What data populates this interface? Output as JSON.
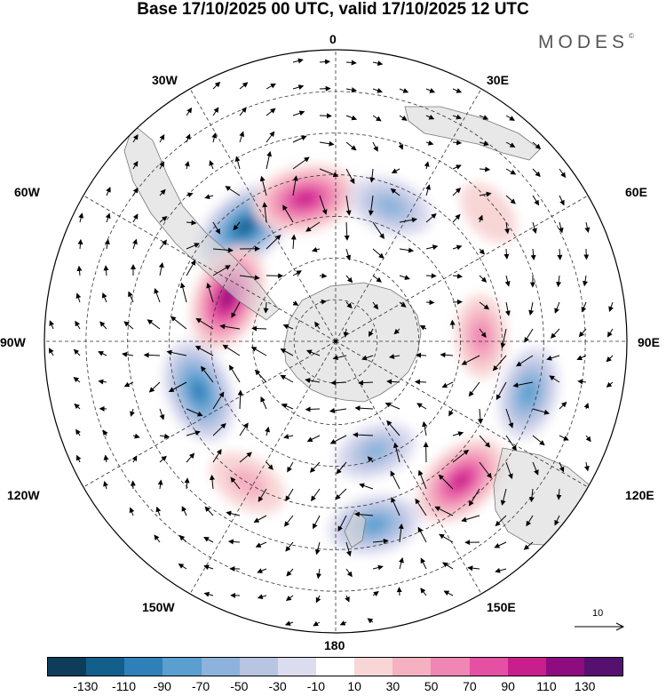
{
  "title": "Base 17/10/2025 00 UTC, valid 17/10/2025 12 UTC",
  "brand": "MODES",
  "brand_mark": "©",
  "map": {
    "projection": "south polar stereographic",
    "longitude_labels": {
      "top": "0",
      "bottom": "180",
      "left": "90W",
      "right": "90E",
      "upper_left_30": "30W",
      "upper_right_30": "30E",
      "left_60": "60W",
      "right_60": "60E",
      "lower_left_120": "120W",
      "lower_right_120": "120E",
      "lower_left_150": "150W",
      "lower_right_150": "150E"
    },
    "anomalies": [
      {
        "lon": -38,
        "lat": -55,
        "value": -125
      },
      {
        "lon": -12,
        "lat": -55,
        "value": 118
      },
      {
        "lon": -68,
        "lat": -62,
        "value": 122
      },
      {
        "lon": 22,
        "lat": -55,
        "value": -70
      },
      {
        "lon": 50,
        "lat": -42,
        "value": 25
      },
      {
        "lon": 88,
        "lat": -55,
        "value": 60
      },
      {
        "lon": 105,
        "lat": -42,
        "value": -85
      },
      {
        "lon": 138,
        "lat": -45,
        "value": 110
      },
      {
        "lon": 168,
        "lat": -45,
        "value": -85
      },
      {
        "lon": -110,
        "lat": -55,
        "value": -115
      },
      {
        "lon": -148,
        "lat": -50,
        "value": 55
      },
      {
        "lon": 160,
        "lat": -62,
        "value": -60
      }
    ]
  },
  "vector_reference": {
    "label": "10"
  },
  "colorbar": {
    "colors": [
      "#0d3d5a",
      "#135f8c",
      "#2f80b8",
      "#5a9fcf",
      "#8db3dc",
      "#b7c4e2",
      "#dcdcef",
      "#ffffff",
      "#f8d6d6",
      "#f5b0c2",
      "#ef86b3",
      "#e450a2",
      "#c81f8c",
      "#8d0c7f",
      "#56106f"
    ],
    "ticks": [
      "-130",
      "-110",
      "-90",
      "-70",
      "-50",
      "-30",
      "-10",
      "10",
      "30",
      "50",
      "70",
      "90",
      "110",
      "130"
    ]
  }
}
